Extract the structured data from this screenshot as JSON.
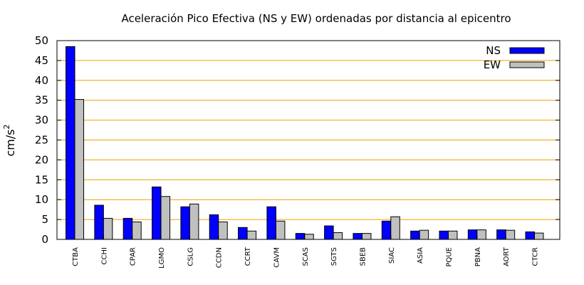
{
  "chart_data": {
    "type": "bar",
    "title": "Aceleración Pico Efectiva (NS y EW) ordenadas por distancia al epicentro",
    "ylabel": "cm/s",
    "ylabel_sup": "2",
    "xlabel": "",
    "ylim": [
      0,
      50
    ],
    "yticks": [
      0,
      5,
      10,
      15,
      20,
      25,
      30,
      35,
      40,
      45,
      50
    ],
    "grid": true,
    "legend_position": "top-right",
    "categories": [
      "CTBA",
      "CCHI",
      "CPAR",
      "LGMO",
      "CSLG",
      "CCDN",
      "CCRT",
      "CAVM",
      "SCAS",
      "SGTS",
      "SBEB",
      "SIAC",
      "ASIA",
      "PQUE",
      "PBNA",
      "AORT",
      "CTCR"
    ],
    "series": [
      {
        "name": "NS",
        "color": "#0000ff",
        "values": [
          48.5,
          8.6,
          5.3,
          13.2,
          8.2,
          6.2,
          3.0,
          8.2,
          1.5,
          3.4,
          1.5,
          4.6,
          2.1,
          2.1,
          2.4,
          2.4,
          1.9
        ]
      },
      {
        "name": "EW",
        "color": "#c0c0c0",
        "values": [
          35.2,
          5.3,
          4.4,
          10.8,
          8.9,
          4.4,
          2.1,
          4.6,
          1.3,
          1.7,
          1.5,
          5.7,
          2.3,
          2.1,
          2.4,
          2.3,
          1.6
        ]
      }
    ],
    "grid_color": "#f0a000"
  }
}
